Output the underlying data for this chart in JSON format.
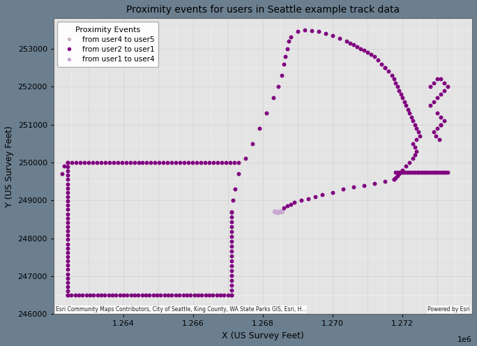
{
  "title": "Proximity events for users in Seattle example track data",
  "xlabel": "X (US Survey Feet)",
  "ylabel": "Y (US Survey Feet)",
  "xlim": [
    1262000,
    1274000
  ],
  "ylim": [
    246000,
    253800
  ],
  "xticks": [
    1264000,
    1266000,
    1268000,
    1270000,
    1272000
  ],
  "yticks": [
    246000,
    247000,
    248000,
    249000,
    250000,
    251000,
    252000,
    253000
  ],
  "background_color": "#6b7f8f",
  "map_bg_color": "#e4e4e4",
  "legend_title": "Proximity Events",
  "legend_entries": [
    {
      "label": "from user4 to user5",
      "color": "#c8b8c8"
    },
    {
      "label": "from user2 to user1",
      "color": "#800080"
    },
    {
      "label": "from user1 to user4",
      "color": "#c8a8d0"
    }
  ],
  "attribution_left": "Esri Community Maps Contributors, City of Seattle, King County, WA State Parks GIS, Esri, H...",
  "attribution_right": "Powered by Esri",
  "dot_color": "#800080",
  "dot_size": 18,
  "light_dot_color": "#c8a8d0",
  "light_dot_size": 18,
  "figsize": [
    6.84,
    4.96
  ],
  "dpi": 100
}
